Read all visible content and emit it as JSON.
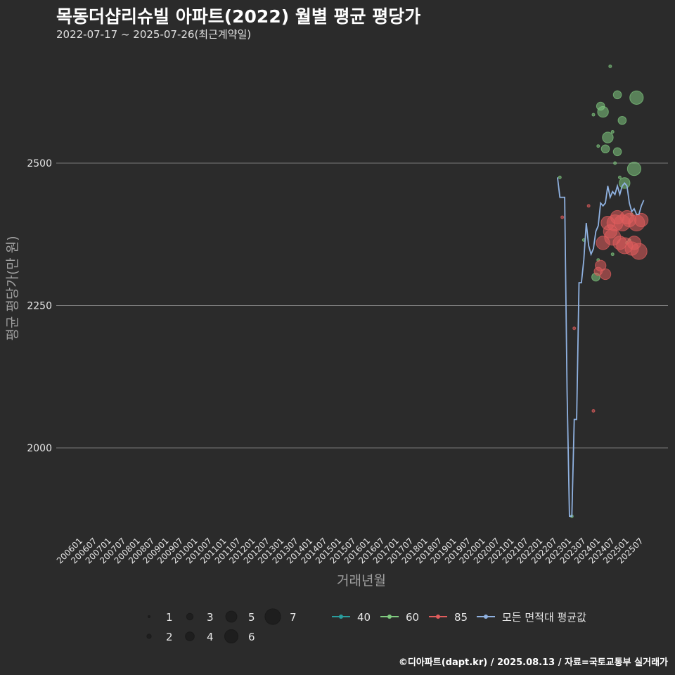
{
  "chart_data": {
    "type": "scatter",
    "title": "목동더샵리슈빌 아파트(2022) 월별 평균 평당가",
    "subtitle": "2022-07-17 ~ 2025-07-26(최근계약일)",
    "xlabel": "거래년월",
    "ylabel": "평균 평당가(만 원)",
    "caption": "©디아파트(dapt.kr) / 2025.08.13 / 자료=국토교통부 실거래가",
    "x_ticks": [
      "200601",
      "200607",
      "200701",
      "200707",
      "200801",
      "200807",
      "200901",
      "200907",
      "201001",
      "201007",
      "201101",
      "201107",
      "201201",
      "201207",
      "201301",
      "201307",
      "201401",
      "201407",
      "201501",
      "201507",
      "201601",
      "201607",
      "201701",
      "201707",
      "201801",
      "201807",
      "201901",
      "201907",
      "202001",
      "202007",
      "202101",
      "202107",
      "202201",
      "202207",
      "202301",
      "202307",
      "202401",
      "202407",
      "202501",
      "202507"
    ],
    "y_ticks": [
      2000,
      2250,
      2500
    ],
    "ylim": [
      1870,
      2690
    ],
    "colors": {
      "40": "#2a9d9d",
      "60": "#7fc97f",
      "85": "#e05c5c",
      "avg": "#8fb1e0",
      "grid": "#7a7a7a",
      "text": "#e6e6e6",
      "axis_title": "#a0a0a0"
    },
    "legend_size": {
      "labels": [
        "1",
        "2",
        "3",
        "4",
        "5",
        "6",
        "7"
      ]
    },
    "legend_area": {
      "labels": [
        "40",
        "60",
        "85",
        "모든 면적대 평균값"
      ]
    },
    "avg_line": [
      {
        "x": 202207,
        "y": 2475
      },
      {
        "x": 202208,
        "y": 2440
      },
      {
        "x": 202209,
        "y": 2440
      },
      {
        "x": 202210,
        "y": 2440
      },
      {
        "x": 202211,
        "y": 2100
      },
      {
        "x": 202212,
        "y": 1880
      },
      {
        "x": 202301,
        "y": 1880
      },
      {
        "x": 202302,
        "y": 2050
      },
      {
        "x": 202303,
        "y": 2050
      },
      {
        "x": 202304,
        "y": 2290
      },
      {
        "x": 202305,
        "y": 2290
      },
      {
        "x": 202306,
        "y": 2330
      },
      {
        "x": 202307,
        "y": 2395
      },
      {
        "x": 202308,
        "y": 2355
      },
      {
        "x": 202309,
        "y": 2340
      },
      {
        "x": 202310,
        "y": 2350
      },
      {
        "x": 202311,
        "y": 2380
      },
      {
        "x": 202312,
        "y": 2390
      },
      {
        "x": 202401,
        "y": 2430
      },
      {
        "x": 202402,
        "y": 2425
      },
      {
        "x": 202403,
        "y": 2430
      },
      {
        "x": 202404,
        "y": 2460
      },
      {
        "x": 202405,
        "y": 2440
      },
      {
        "x": 202406,
        "y": 2450
      },
      {
        "x": 202407,
        "y": 2445
      },
      {
        "x": 202408,
        "y": 2460
      },
      {
        "x": 202409,
        "y": 2445
      },
      {
        "x": 202410,
        "y": 2460
      },
      {
        "x": 202411,
        "y": 2465
      },
      {
        "x": 202412,
        "y": 2460
      },
      {
        "x": 202501,
        "y": 2430
      },
      {
        "x": 202502,
        "y": 2415
      },
      {
        "x": 202503,
        "y": 2420
      },
      {
        "x": 202504,
        "y": 2410
      },
      {
        "x": 202505,
        "y": 2410
      },
      {
        "x": 202506,
        "y": 2425
      },
      {
        "x": 202507,
        "y": 2435
      }
    ],
    "points_60": [
      {
        "x": 202208,
        "y": 2475,
        "n": 1
      },
      {
        "x": 202301,
        "y": 1880,
        "n": 1
      },
      {
        "x": 202306,
        "y": 2365,
        "n": 1
      },
      {
        "x": 202310,
        "y": 2585,
        "n": 1
      },
      {
        "x": 202311,
        "y": 2300,
        "n": 3
      },
      {
        "x": 202312,
        "y": 2330,
        "n": 1
      },
      {
        "x": 202312,
        "y": 2530,
        "n": 1
      },
      {
        "x": 202401,
        "y": 2600,
        "n": 3
      },
      {
        "x": 202402,
        "y": 2590,
        "n": 4
      },
      {
        "x": 202403,
        "y": 2525,
        "n": 3
      },
      {
        "x": 202404,
        "y": 2545,
        "n": 4
      },
      {
        "x": 202405,
        "y": 2670,
        "n": 1
      },
      {
        "x": 202406,
        "y": 2340,
        "n": 1
      },
      {
        "x": 202406,
        "y": 2555,
        "n": 1
      },
      {
        "x": 202407,
        "y": 2500,
        "n": 1
      },
      {
        "x": 202408,
        "y": 2620,
        "n": 3
      },
      {
        "x": 202408,
        "y": 2520,
        "n": 3
      },
      {
        "x": 202409,
        "y": 2475,
        "n": 1
      },
      {
        "x": 202410,
        "y": 2575,
        "n": 3
      },
      {
        "x": 202411,
        "y": 2465,
        "n": 4
      },
      {
        "x": 202412,
        "y": 2360,
        "n": 1
      },
      {
        "x": 202501,
        "y": 2365,
        "n": 1
      },
      {
        "x": 202502,
        "y": 2410,
        "n": 1
      },
      {
        "x": 202503,
        "y": 2490,
        "n": 5
      },
      {
        "x": 202504,
        "y": 2615,
        "n": 5
      }
    ],
    "points_85": [
      {
        "x": 202209,
        "y": 2405,
        "n": 1
      },
      {
        "x": 202302,
        "y": 2210,
        "n": 1
      },
      {
        "x": 202308,
        "y": 2425,
        "n": 1
      },
      {
        "x": 202310,
        "y": 2065,
        "n": 1
      },
      {
        "x": 202312,
        "y": 2310,
        "n": 3
      },
      {
        "x": 202401,
        "y": 2320,
        "n": 4
      },
      {
        "x": 202402,
        "y": 2360,
        "n": 5
      },
      {
        "x": 202403,
        "y": 2305,
        "n": 4
      },
      {
        "x": 202404,
        "y": 2395,
        "n": 5
      },
      {
        "x": 202405,
        "y": 2380,
        "n": 5
      },
      {
        "x": 202406,
        "y": 2370,
        "n": 6
      },
      {
        "x": 202407,
        "y": 2395,
        "n": 6
      },
      {
        "x": 202408,
        "y": 2405,
        "n": 5
      },
      {
        "x": 202409,
        "y": 2360,
        "n": 5
      },
      {
        "x": 202410,
        "y": 2395,
        "n": 6
      },
      {
        "x": 202411,
        "y": 2355,
        "n": 6
      },
      {
        "x": 202412,
        "y": 2405,
        "n": 5
      },
      {
        "x": 202501,
        "y": 2400,
        "n": 5
      },
      {
        "x": 202502,
        "y": 2350,
        "n": 5
      },
      {
        "x": 202503,
        "y": 2360,
        "n": 5
      },
      {
        "x": 202504,
        "y": 2395,
        "n": 6
      },
      {
        "x": 202505,
        "y": 2345,
        "n": 6
      },
      {
        "x": 202506,
        "y": 2400,
        "n": 5
      }
    ]
  }
}
